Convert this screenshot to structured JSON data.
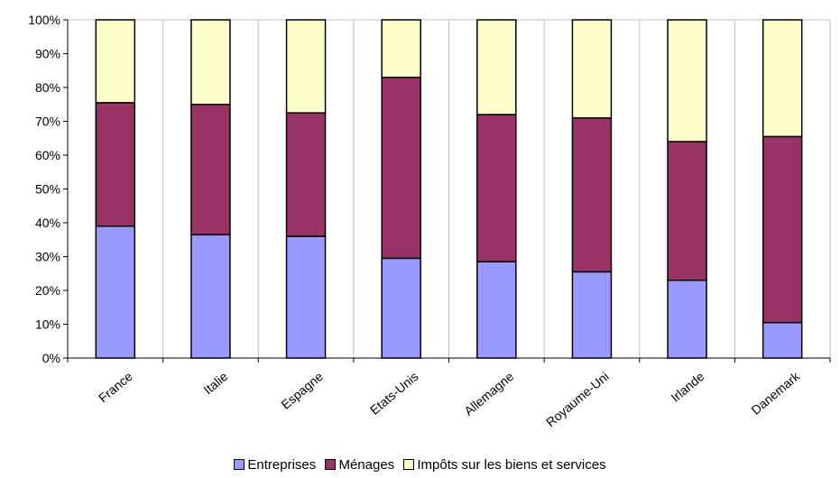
{
  "chart_data": {
    "type": "bar",
    "stacked": true,
    "percent_stacked": true,
    "categories": [
      "France",
      "Italie",
      "Espagne",
      "Etats-Unis",
      "Allemagne",
      "Royaume-Uni",
      "Irlande",
      "Danemark"
    ],
    "series": [
      {
        "name": "Entreprises",
        "color": "#9999ff",
        "values": [
          39,
          36.5,
          36,
          29.5,
          28.5,
          25.5,
          23,
          10.5
        ]
      },
      {
        "name": "Ménages",
        "color": "#993366",
        "values": [
          36.5,
          38.5,
          36.5,
          53.5,
          43.5,
          45.5,
          41,
          55
        ]
      },
      {
        "name": "Impôts sur les biens et services",
        "color": "#ffffcc",
        "values": [
          24.5,
          25,
          27.5,
          17,
          28,
          29,
          36,
          34.5
        ]
      }
    ],
    "yticks": [
      "0%",
      "10%",
      "20%",
      "30%",
      "40%",
      "50%",
      "60%",
      "70%",
      "80%",
      "90%",
      "100%"
    ],
    "ylim": [
      0,
      100
    ],
    "grid": "vertical",
    "legend_position": "bottom"
  }
}
